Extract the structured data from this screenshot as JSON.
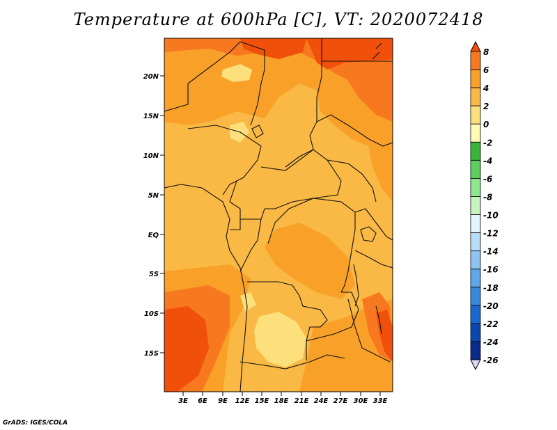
{
  "title": "Temperature at 600hPa [C], VT: 2020072418",
  "footer": "GrADS: IGES/COLA",
  "map": {
    "lat_labels": [
      "20N",
      "15N",
      "10N",
      "5N",
      "EQ",
      "5S",
      "10S",
      "15S"
    ],
    "lon_labels": [
      "3E",
      "6E",
      "9E",
      "12E",
      "15E",
      "18E",
      "21E",
      "24E",
      "27E",
      "30E",
      "33E"
    ],
    "colors": {
      "warm_6_8": "#f0500a",
      "warm_4_6": "#f87820",
      "warm_2_4": "#f8a028",
      "warm_0_2": "#fab844",
      "warm_m2_0": "#fde07c",
      "border": "#111111"
    }
  },
  "colorbar": {
    "labels": [
      "8",
      "6",
      "4",
      "2",
      "0",
      "-2",
      "-4",
      "-6",
      "-8",
      "-10",
      "-12",
      "-14",
      "-16",
      "-18",
      "-20",
      "-22",
      "-24",
      "-26"
    ],
    "colors": [
      "#f0500a",
      "#f87820",
      "#f8a028",
      "#fab844",
      "#fde07c",
      "#fefab2",
      "#3ab53a",
      "#5ccf5c",
      "#8ee68e",
      "#c4f5c0",
      "#e3f5ff",
      "#b8ddf8",
      "#8ec4f2",
      "#60a6ea",
      "#3888e0",
      "#1a68d0",
      "#0a46b0",
      "#0a2a8c",
      "#0c0c5c",
      "#d8d8f8"
    ]
  }
}
